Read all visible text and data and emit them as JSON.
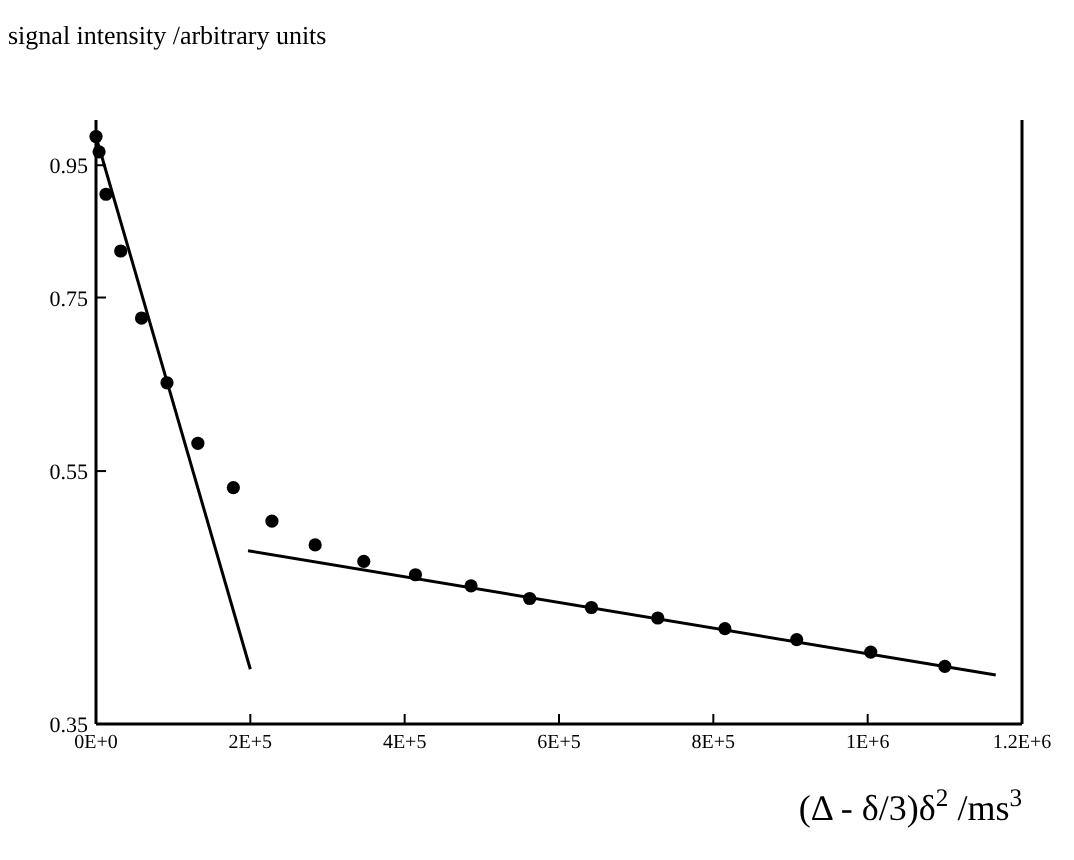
{
  "chart_data": {
    "type": "scatter",
    "ylabel": "signal intensity /arbitrary units",
    "xlabel": "(Δ - δ/3)δ$^{2}$ /ms$^{3}$",
    "log": "y",
    "xlim": [
      0,
      1200000
    ],
    "xticks": [
      {
        "value": 0,
        "label": "0E+0"
      },
      {
        "value": 200000,
        "label": "2E+5"
      },
      {
        "value": 400000,
        "label": "4E+5"
      },
      {
        "value": 600000,
        "label": "6E+5"
      },
      {
        "value": 800000,
        "label": "8E+5"
      },
      {
        "value": 1000000,
        "label": "1E+6"
      },
      {
        "value": 1200000,
        "label": "1.2E+6"
      }
    ],
    "ylim": [
      0.35,
      1.03
    ],
    "yticks": [
      0.35,
      0.55,
      0.75,
      0.95
    ],
    "grid": false,
    "series": [
      {
        "color": "#000000",
        "marker": "circle",
        "x": [
          0,
          4000,
          13000,
          32000,
          59000,
          92000,
          132000,
          178000,
          228000,
          284000,
          347000,
          414000,
          486000,
          562000,
          642000,
          728000,
          815000,
          908000,
          1004000,
          1100000
        ],
        "values": [
          1.0,
          0.973,
          0.902,
          0.815,
          0.723,
          0.644,
          0.578,
          0.534,
          0.503,
          0.482,
          0.468,
          0.457,
          0.448,
          0.438,
          0.431,
          0.423,
          0.415,
          0.407,
          0.398,
          0.388
        ]
      },
      {
        "type": "line",
        "color": "#000000",
        "line_style": "solid",
        "x": [
          0,
          200000
        ],
        "values": [
          1.0,
          0.386
        ]
      },
      {
        "type": "line",
        "color": "#000000",
        "line_style": "solid",
        "x": [
          197000,
          1166000
        ],
        "values": [
          0.477,
          0.382
        ]
      }
    ]
  }
}
